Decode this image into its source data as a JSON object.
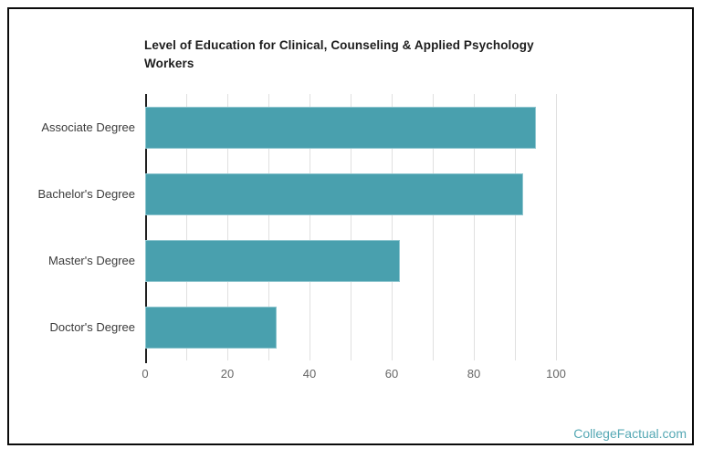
{
  "chart_data": {
    "type": "bar",
    "orientation": "horizontal",
    "title": "Level of Education for Clinical, Counseling & Applied Psychology Workers",
    "categories": [
      "Associate Degree",
      "Bachelor's Degree",
      "Master's Degree",
      "Doctor's Degree"
    ],
    "values": [
      95,
      92,
      62,
      32
    ],
    "xlabel": "",
    "ylabel": "",
    "xlim": [
      0,
      100
    ],
    "x_ticks": [
      0,
      20,
      40,
      60,
      80,
      100
    ],
    "grid": true,
    "legend": "none",
    "bar_color": "#49a0ae",
    "bar_edge_color": "#8fc6cf",
    "grid_color": "#e0e0e0",
    "axis_color": "#1f1f1f",
    "tick_label_color": "#666666",
    "category_label_color": "#3b3b3b",
    "title_color": "#1d1d1d"
  },
  "branding": {
    "label": "CollegeFactual.com",
    "color": "#55a8b4"
  },
  "frame": {
    "border_color": "#0b0b0b",
    "background": "#ffffff"
  }
}
